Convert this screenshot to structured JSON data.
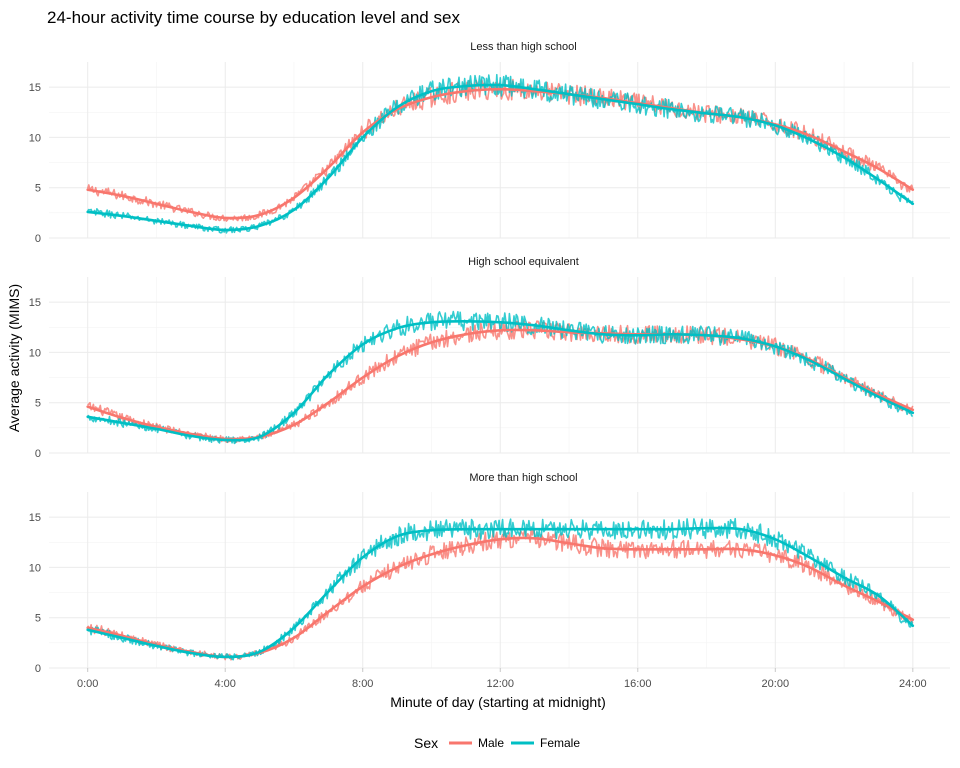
{
  "chart_data": {
    "type": "line",
    "title": "24-hour activity time course by education level and sex",
    "xlabel": "Minute of day (starting at midnight)",
    "ylabel": "Average activity (MIMS)",
    "x_tick_labels": [
      "0:00",
      "4:00",
      "8:00",
      "12:00",
      "16:00",
      "20:00",
      "24:00"
    ],
    "x_ticks_hours": [
      0,
      4,
      8,
      12,
      16,
      20,
      24
    ],
    "xlim_hours": [
      0,
      24
    ],
    "y_ticks": [
      0,
      5,
      10,
      15
    ],
    "ylim": [
      0,
      17.5
    ],
    "grid": true,
    "legend": {
      "title": "Sex",
      "position": "bottom",
      "items": [
        {
          "name": "Male",
          "color": "#F8766D"
        },
        {
          "name": "Female",
          "color": "#00BFC4"
        }
      ]
    },
    "colors": {
      "Male": "#F8766D",
      "Female": "#00BFC4"
    },
    "panels": [
      {
        "label": "Less than high school",
        "series": [
          {
            "name": "Male",
            "x_hours": [
              0,
              1,
              2,
              3,
              4,
              5,
              6,
              7,
              8,
              9,
              10,
              11,
              12,
              13,
              14,
              15,
              16,
              17,
              18,
              19,
              20,
              21,
              22,
              23,
              24
            ],
            "values": [
              4.8,
              4.2,
              3.4,
              2.6,
              2.0,
              2.3,
              4.0,
              7.0,
              10.5,
              12.8,
              14.0,
              14.6,
              14.8,
              14.6,
              14.3,
              13.9,
              13.4,
              12.9,
              12.4,
              12.0,
              11.3,
              10.2,
              8.6,
              6.9,
              4.8
            ]
          },
          {
            "name": "Female",
            "x_hours": [
              0,
              1,
              2,
              3,
              4,
              5,
              6,
              7,
              8,
              9,
              10,
              11,
              12,
              13,
              14,
              15,
              16,
              17,
              18,
              19,
              20,
              21,
              22,
              23,
              24
            ],
            "values": [
              2.6,
              2.2,
              1.7,
              1.2,
              0.8,
              1.2,
              2.8,
              6.0,
              10.0,
              13.0,
              14.6,
              15.1,
              15.2,
              14.8,
              14.3,
              13.8,
              13.3,
              12.8,
              12.4,
              12.0,
              11.2,
              9.8,
              8.0,
              5.8,
              3.4
            ]
          }
        ]
      },
      {
        "label": "High school equivalent",
        "series": [
          {
            "name": "Male",
            "x_hours": [
              0,
              1,
              2,
              3,
              4,
              5,
              6,
              7,
              8,
              9,
              10,
              11,
              12,
              13,
              14,
              15,
              16,
              17,
              18,
              19,
              20,
              21,
              22,
              23,
              24
            ],
            "values": [
              4.6,
              3.5,
              2.6,
              1.9,
              1.4,
              1.6,
              2.8,
              5.0,
              7.5,
              9.6,
              11.0,
              11.8,
              12.2,
              12.2,
              12.0,
              11.9,
              11.8,
              11.8,
              11.7,
              11.3,
              10.6,
              9.3,
              7.5,
              5.8,
              4.3
            ]
          },
          {
            "name": "Female",
            "x_hours": [
              0,
              1,
              2,
              3,
              4,
              5,
              6,
              7,
              8,
              9,
              10,
              11,
              12,
              13,
              14,
              15,
              16,
              17,
              18,
              19,
              20,
              21,
              22,
              23,
              24
            ],
            "values": [
              3.6,
              3.0,
              2.4,
              1.7,
              1.3,
              1.6,
              4.0,
              7.8,
              10.8,
              12.4,
              13.0,
              13.1,
              13.0,
              12.7,
              12.2,
              11.8,
              11.7,
              11.8,
              11.7,
              11.4,
              10.6,
              9.2,
              7.4,
              5.6,
              4.0
            ]
          }
        ]
      },
      {
        "label": "More than high school",
        "series": [
          {
            "name": "Male",
            "x_hours": [
              0,
              1,
              2,
              3,
              4,
              5,
              6,
              7,
              8,
              9,
              10,
              11,
              12,
              13,
              14,
              15,
              16,
              17,
              18,
              19,
              20,
              21,
              22,
              23,
              24
            ],
            "values": [
              4.0,
              3.2,
              2.3,
              1.6,
              1.1,
              1.5,
              3.0,
              5.6,
              8.1,
              10.0,
              11.3,
              12.2,
              12.8,
              12.9,
              12.4,
              11.9,
              11.8,
              11.8,
              11.8,
              11.8,
              11.2,
              10.0,
              8.2,
              6.6,
              4.8
            ]
          },
          {
            "name": "Female",
            "x_hours": [
              0,
              1,
              2,
              3,
              4,
              5,
              6,
              7,
              8,
              9,
              10,
              11,
              12,
              13,
              14,
              15,
              16,
              17,
              18,
              19,
              20,
              21,
              22,
              23,
              24
            ],
            "values": [
              3.8,
              3.0,
              2.2,
              1.5,
              1.1,
              1.6,
              4.0,
              7.6,
              11.0,
              13.1,
              13.7,
              13.8,
              13.8,
              13.8,
              13.8,
              13.8,
              13.8,
              13.8,
              13.9,
              13.8,
              12.8,
              11.0,
              9.0,
              7.2,
              4.2
            ]
          }
        ]
      }
    ]
  }
}
